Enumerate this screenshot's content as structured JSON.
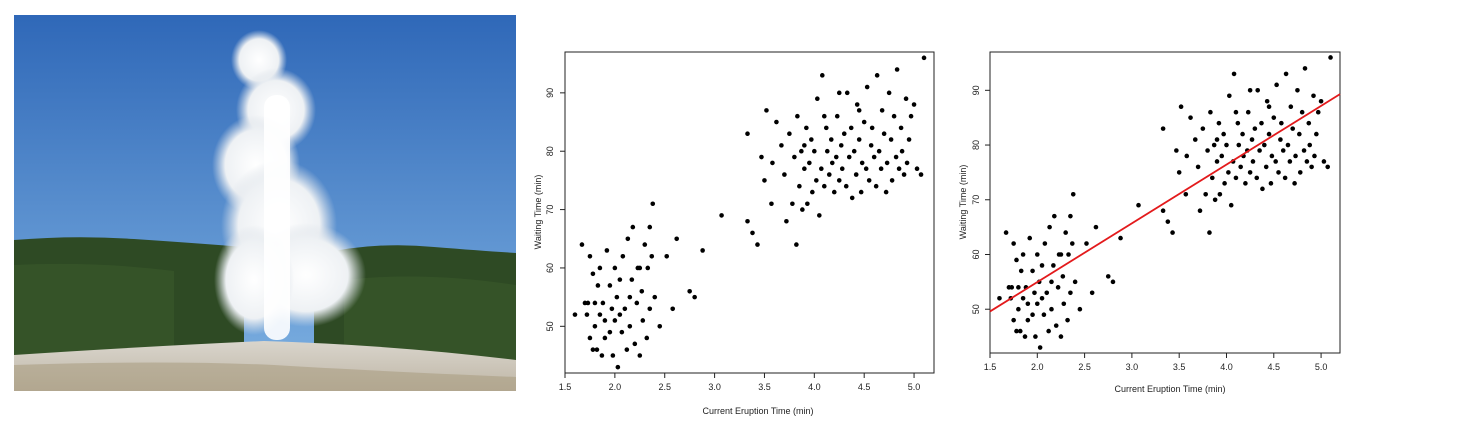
{
  "photo": {
    "subject": "Old Faithful geyser erupting",
    "colors": {
      "sky_top": "#2f68b8",
      "sky_bottom": "#7fb2e2",
      "forest": "#2e4a24",
      "steam": "#f4f6f8",
      "ground": "#cfcac0"
    }
  },
  "chart_data": [
    {
      "type": "scatter",
      "xlabel": "Current Eruption Time (min)",
      "ylabel": "Waiting Time (min)",
      "xlim": [
        1.5,
        5.2
      ],
      "ylim": [
        42,
        97
      ],
      "xticks": [
        "1.5",
        "2.0",
        "2.5",
        "3.0",
        "3.5",
        "4.0",
        "4.5",
        "5.0"
      ],
      "yticks": [
        "50",
        "60",
        "70",
        "80",
        "90"
      ],
      "grid": false,
      "point_color": "#000000",
      "points": [
        [
          1.6,
          52
        ],
        [
          1.67,
          64
        ],
        [
          1.7,
          54
        ],
        [
          1.73,
          54
        ],
        [
          1.75,
          48
        ],
        [
          1.75,
          62
        ],
        [
          1.78,
          46
        ],
        [
          1.78,
          59
        ],
        [
          1.8,
          50
        ],
        [
          1.8,
          54
        ],
        [
          1.82,
          46
        ],
        [
          1.83,
          57
        ],
        [
          1.85,
          52
        ],
        [
          1.85,
          60
        ],
        [
          1.87,
          45
        ],
        [
          1.88,
          54
        ],
        [
          1.9,
          51
        ],
        [
          1.92,
          63
        ],
        [
          1.95,
          49
        ],
        [
          1.95,
          57
        ],
        [
          1.97,
          53
        ],
        [
          1.98,
          45
        ],
        [
          2.0,
          60
        ],
        [
          2.0,
          51
        ],
        [
          2.02,
          55
        ],
        [
          2.03,
          43
        ],
        [
          2.05,
          58
        ],
        [
          2.07,
          49
        ],
        [
          2.08,
          62
        ],
        [
          2.1,
          53
        ],
        [
          2.12,
          46
        ],
        [
          2.13,
          65
        ],
        [
          2.15,
          50
        ],
        [
          2.17,
          58
        ],
        [
          2.18,
          67
        ],
        [
          2.2,
          47
        ],
        [
          2.22,
          54
        ],
        [
          2.23,
          60
        ],
        [
          2.25,
          45
        ],
        [
          2.27,
          56
        ],
        [
          2.28,
          51
        ],
        [
          2.3,
          64
        ],
        [
          2.32,
          48
        ],
        [
          2.33,
          60
        ],
        [
          2.35,
          53
        ],
        [
          2.37,
          62
        ],
        [
          2.38,
          71
        ],
        [
          2.4,
          55
        ],
        [
          2.45,
          50
        ],
        [
          2.52,
          62
        ],
        [
          2.58,
          53
        ],
        [
          2.62,
          65
        ],
        [
          2.75,
          56
        ],
        [
          2.8,
          55
        ],
        [
          2.88,
          63
        ],
        [
          3.07,
          69
        ],
        [
          3.33,
          83
        ],
        [
          3.33,
          68
        ],
        [
          3.38,
          66
        ],
        [
          3.43,
          64
        ],
        [
          3.47,
          79
        ],
        [
          3.5,
          75
        ],
        [
          3.52,
          87
        ],
        [
          3.57,
          71
        ],
        [
          3.58,
          78
        ],
        [
          3.62,
          85
        ],
        [
          3.67,
          81
        ],
        [
          3.7,
          76
        ],
        [
          3.72,
          68
        ],
        [
          3.75,
          83
        ],
        [
          3.78,
          71
        ],
        [
          3.8,
          79
        ],
        [
          3.82,
          64
        ],
        [
          3.83,
          86
        ],
        [
          3.85,
          74
        ],
        [
          3.87,
          80
        ],
        [
          3.88,
          70
        ],
        [
          3.9,
          77
        ],
        [
          3.92,
          84
        ],
        [
          3.93,
          71
        ],
        [
          3.95,
          78
        ],
        [
          3.97,
          82
        ],
        [
          3.98,
          73
        ],
        [
          4.0,
          80
        ],
        [
          4.02,
          75
        ],
        [
          4.03,
          89
        ],
        [
          4.05,
          69
        ],
        [
          4.07,
          77
        ],
        [
          4.08,
          93
        ],
        [
          4.1,
          74
        ],
        [
          4.12,
          84
        ],
        [
          4.13,
          80
        ],
        [
          4.15,
          76
        ],
        [
          4.17,
          82
        ],
        [
          4.18,
          78
        ],
        [
          4.2,
          73
        ],
        [
          4.22,
          79
        ],
        [
          4.23,
          86
        ],
        [
          4.25,
          75
        ],
        [
          4.27,
          81
        ],
        [
          4.28,
          77
        ],
        [
          4.3,
          83
        ],
        [
          4.32,
          74
        ],
        [
          4.33,
          90
        ],
        [
          4.35,
          79
        ],
        [
          4.37,
          84
        ],
        [
          4.38,
          72
        ],
        [
          4.4,
          80
        ],
        [
          4.42,
          76
        ],
        [
          4.43,
          88
        ],
        [
          4.45,
          82
        ],
        [
          4.47,
          73
        ],
        [
          4.48,
          78
        ],
        [
          4.5,
          85
        ],
        [
          4.52,
          77
        ],
        [
          4.53,
          91
        ],
        [
          4.55,
          75
        ],
        [
          4.57,
          81
        ],
        [
          4.58,
          84
        ],
        [
          4.6,
          79
        ],
        [
          4.62,
          74
        ],
        [
          4.63,
          93
        ],
        [
          4.65,
          80
        ],
        [
          4.67,
          77
        ],
        [
          4.68,
          87
        ],
        [
          4.7,
          83
        ],
        [
          4.72,
          73
        ],
        [
          4.73,
          78
        ],
        [
          4.75,
          90
        ],
        [
          4.77,
          82
        ],
        [
          4.78,
          75
        ],
        [
          4.8,
          86
        ],
        [
          4.82,
          79
        ],
        [
          4.83,
          94
        ],
        [
          4.85,
          77
        ],
        [
          4.87,
          84
        ],
        [
          4.88,
          80
        ],
        [
          4.9,
          76
        ],
        [
          4.92,
          89
        ],
        [
          4.93,
          78
        ],
        [
          4.95,
          82
        ],
        [
          4.97,
          86
        ],
        [
          5.0,
          88
        ],
        [
          5.03,
          77
        ],
        [
          5.07,
          76
        ],
        [
          5.1,
          96
        ],
        [
          1.72,
          52
        ],
        [
          1.9,
          48
        ],
        [
          2.05,
          52
        ],
        [
          2.15,
          55
        ],
        [
          2.25,
          60
        ],
        [
          2.35,
          67
        ],
        [
          3.9,
          81
        ],
        [
          4.1,
          86
        ],
        [
          4.25,
          90
        ],
        [
          4.45,
          87
        ]
      ]
    },
    {
      "type": "scatter",
      "xlabel": "Current Eruption Time (min)",
      "ylabel": "Waiting Time (min)",
      "xlim": [
        1.5,
        5.2
      ],
      "ylim": [
        42,
        97
      ],
      "xticks": [
        "1.5",
        "2.0",
        "2.5",
        "3.0",
        "3.5",
        "4.0",
        "4.5",
        "5.0"
      ],
      "yticks": [
        "50",
        "60",
        "70",
        "80",
        "90"
      ],
      "grid": false,
      "point_color": "#000000",
      "regression_line": {
        "intercept": 33.5,
        "slope": 10.73,
        "color": "#e31a1c"
      },
      "same_points_as_chart": 0
    }
  ]
}
